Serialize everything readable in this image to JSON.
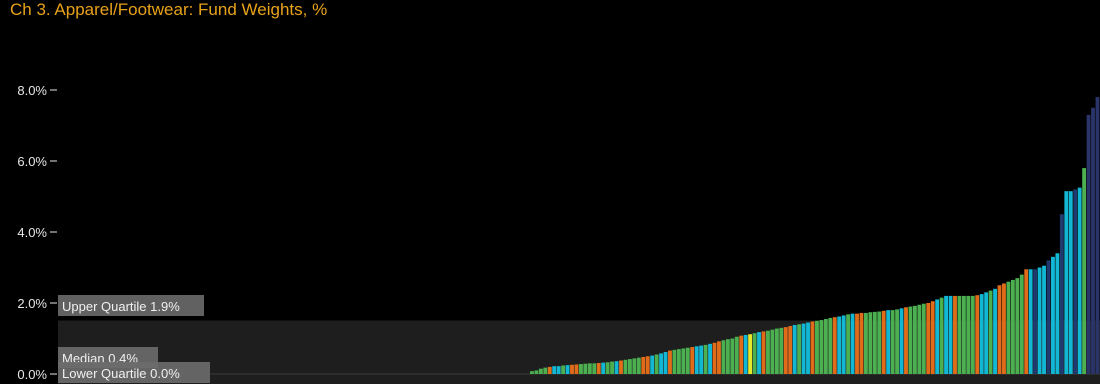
{
  "title": "Ch 3. Apparel/Footwear:  Fund Weights, %",
  "colors": {
    "background": "#000000",
    "title": "#e8a21a",
    "quartile_band": "#1e1e1e",
    "label_box": "#6b6b6b"
  },
  "chart_data": {
    "type": "bar",
    "title": "Ch 3. Apparel/Footwear:  Fund Weights, %",
    "xlabel": "",
    "ylabel": "",
    "ylim": [
      0,
      8.5
    ],
    "y_ticks": [
      {
        "value": 0,
        "label": "0.0%"
      },
      {
        "value": 2,
        "label": "2.0%"
      },
      {
        "value": 4,
        "label": "4.0%"
      },
      {
        "value": 6,
        "label": "6.0%"
      },
      {
        "value": 8,
        "label": "8.0%"
      }
    ],
    "grid": false,
    "legend": "none",
    "bar_count": 255,
    "values_note_free": true,
    "values": [
      0,
      0,
      0,
      0,
      0,
      0,
      0,
      0,
      0,
      0,
      0,
      0,
      0,
      0,
      0,
      0,
      0,
      0,
      0,
      0,
      0,
      0,
      0,
      0,
      0,
      0,
      0,
      0,
      0,
      0,
      0,
      0,
      0,
      0,
      0,
      0,
      0,
      0,
      0,
      0,
      0,
      0,
      0,
      0,
      0,
      0,
      0,
      0,
      0,
      0,
      0,
      0,
      0,
      0,
      0,
      0,
      0,
      0,
      0,
      0,
      0,
      0,
      0,
      0,
      0,
      0,
      0,
      0,
      0,
      0,
      0,
      0,
      0,
      0,
      0,
      0,
      0,
      0,
      0,
      0,
      0,
      0,
      0,
      0,
      0,
      0,
      0,
      0,
      0,
      0,
      0,
      0,
      0,
      0,
      0,
      0,
      0,
      0,
      0,
      0,
      0,
      0,
      0,
      0,
      0,
      0,
      0.08,
      0.1,
      0.15,
      0.18,
      0.2,
      0.22,
      0.22,
      0.24,
      0.25,
      0.26,
      0.27,
      0.28,
      0.29,
      0.3,
      0.3,
      0.31,
      0.32,
      0.33,
      0.35,
      0.36,
      0.38,
      0.4,
      0.42,
      0.44,
      0.46,
      0.48,
      0.5,
      0.52,
      0.55,
      0.58,
      0.62,
      0.66,
      0.68,
      0.7,
      0.72,
      0.74,
      0.76,
      0.78,
      0.8,
      0.82,
      0.85,
      0.88,
      0.92,
      0.95,
      0.98,
      1.0,
      1.05,
      1.08,
      1.1,
      1.12,
      1.15,
      1.18,
      1.2,
      1.22,
      1.25,
      1.28,
      1.3,
      1.32,
      1.35,
      1.38,
      1.4,
      1.42,
      1.45,
      1.48,
      1.5,
      1.52,
      1.55,
      1.58,
      1.6,
      1.62,
      1.65,
      1.68,
      1.7,
      1.7,
      1.72,
      1.72,
      1.74,
      1.75,
      1.76,
      1.78,
      1.8,
      1.8,
      1.82,
      1.85,
      1.88,
      1.9,
      1.92,
      1.95,
      1.98,
      2.0,
      2.05,
      2.1,
      2.15,
      2.2,
      2.2,
      2.2,
      2.2,
      2.2,
      2.2,
      2.2,
      2.22,
      2.25,
      2.3,
      2.35,
      2.4,
      2.5,
      2.55,
      2.6,
      2.65,
      2.7,
      2.8,
      2.95,
      2.95,
      2.95,
      3.0,
      3.05,
      3.2,
      3.3,
      3.4,
      4.5,
      5.15,
      5.15,
      5.2,
      5.25,
      5.8,
      7.3,
      7.5,
      7.8
    ],
    "bar_colors": [],
    "quartiles": [
      {
        "name": "Upper Quartile",
        "value": 1.9,
        "label": "Upper Quartile 1.9%"
      },
      {
        "name": "Median",
        "value": 0.4,
        "label": "Median 0.4%"
      },
      {
        "name": "Lower Quartile",
        "value": 0.0,
        "label": "Lower Quartile 0.0%"
      }
    ]
  }
}
